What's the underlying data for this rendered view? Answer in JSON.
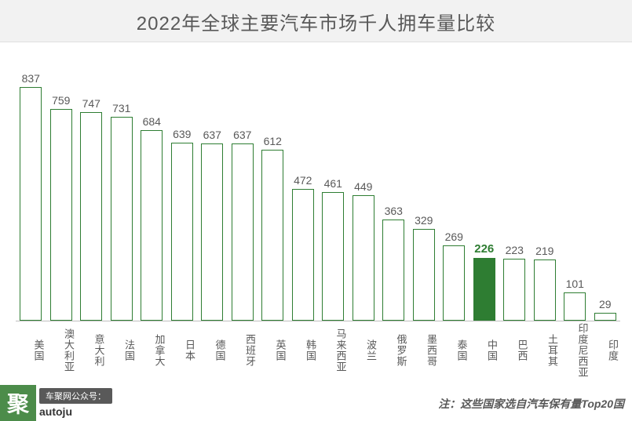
{
  "chart": {
    "title": "2022年全球主要汽车市场千人拥车量比较",
    "type": "bar",
    "y_max": 900,
    "bar_border_color": "#2e7d32",
    "bar_fill_color_empty": "#ffffff",
    "bar_fill_color_highlight": "#2e7d32",
    "value_label_color": "#595959",
    "value_label_highlight_color": "#2e7d32",
    "category_label_color": "#595959",
    "title_bg": "#f2f2f2",
    "title_color": "#595959",
    "axis_color": "#bfbfbf",
    "data": [
      {
        "label": "美国",
        "value": 837,
        "highlight": false
      },
      {
        "label": "澳大利亚",
        "value": 759,
        "highlight": false
      },
      {
        "label": "意大利",
        "value": 747,
        "highlight": false
      },
      {
        "label": "法国",
        "value": 731,
        "highlight": false
      },
      {
        "label": "加拿大",
        "value": 684,
        "highlight": false
      },
      {
        "label": "日本",
        "value": 639,
        "highlight": false
      },
      {
        "label": "德国",
        "value": 637,
        "highlight": false
      },
      {
        "label": "西班牙",
        "value": 637,
        "highlight": false
      },
      {
        "label": "英国",
        "value": 612,
        "highlight": false
      },
      {
        "label": "韩国",
        "value": 472,
        "highlight": false
      },
      {
        "label": "马来西亚",
        "value": 461,
        "highlight": false
      },
      {
        "label": "波兰",
        "value": 449,
        "highlight": false
      },
      {
        "label": "俄罗斯",
        "value": 363,
        "highlight": false
      },
      {
        "label": "墨西哥",
        "value": 329,
        "highlight": false
      },
      {
        "label": "泰国",
        "value": 269,
        "highlight": false
      },
      {
        "label": "中国",
        "value": 226,
        "highlight": true
      },
      {
        "label": "巴西",
        "value": 223,
        "highlight": false
      },
      {
        "label": "土耳其",
        "value": 219,
        "highlight": false
      },
      {
        "label": "印度尼西亚",
        "value": 101,
        "highlight": false
      },
      {
        "label": "印度",
        "value": 29,
        "highlight": false
      }
    ]
  },
  "footer": {
    "logo_char": "聚",
    "brand_tag": "车聚网公众号：",
    "brand_id": "autoju",
    "note": "注：这些国家选自汽车保有量Top20国"
  }
}
